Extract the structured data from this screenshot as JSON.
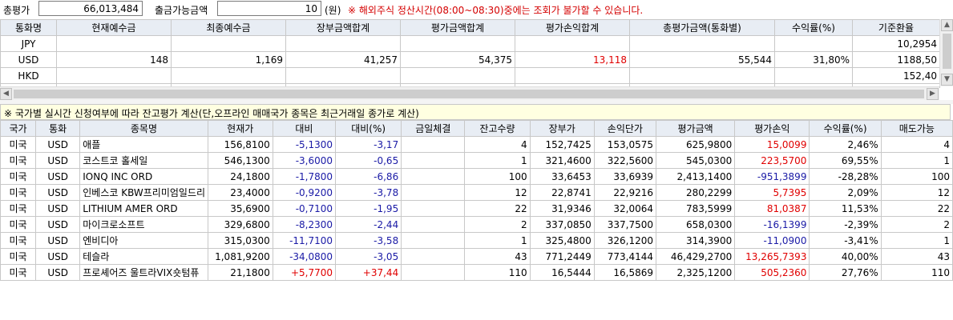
{
  "top": {
    "total_label": "총평가",
    "total_value": "66,013,484",
    "withdraw_label": "출금가능금액",
    "withdraw_value": "10",
    "unit": "(원)",
    "warning": "※ 해외주식 정산시간(08:00~08:30)중에는 조회가 불가할 수 있습니다."
  },
  "currency_table": {
    "headers": [
      "통화명",
      "현재예수금",
      "최종예수금",
      "장부금액합계",
      "평가금액합계",
      "평가손익합계",
      "총평가금액(통화별)",
      "수익률(%)",
      "기준환율"
    ],
    "rows": [
      {
        "currency": "JPY",
        "cur_deposit": "",
        "final_deposit": "",
        "book_total": "",
        "eval_total": "",
        "pl_total": "",
        "total_eval": "",
        "return": "",
        "rate": "10,2954"
      },
      {
        "currency": "USD",
        "cur_deposit": "148",
        "final_deposit": "1,169",
        "book_total": "41,257",
        "eval_total": "54,375",
        "pl_total": "13,118",
        "total_eval": "55,544",
        "return": "31,80%",
        "rate": "1188,50"
      },
      {
        "currency": "HKD",
        "cur_deposit": "",
        "final_deposit": "",
        "book_total": "",
        "eval_total": "",
        "pl_total": "",
        "total_eval": "",
        "return": "",
        "rate": "152,40"
      }
    ]
  },
  "notice": "※ 국가별 실시간 신청여부에 따라 잔고평가 계산(단,오프라인 매매국가 종목은 최근거래일 종가로 계산)",
  "holdings": {
    "headers": [
      "국가",
      "통화",
      "종목명",
      "현재가",
      "대비",
      "대비(%)",
      "금일체결",
      "잔고수량",
      "장부가",
      "손익단가",
      "평가금액",
      "평가손익",
      "수익률(%)",
      "매도가능"
    ],
    "rows": [
      {
        "country": "미국",
        "currency": "USD",
        "name": "애플",
        "price": "156,8100",
        "change": "-5,1300",
        "change_pct": "-3,17",
        "today_exec": "",
        "qty": "4",
        "book_price": "152,7425",
        "pl_unit": "153,0575",
        "eval_amt": "625,9800",
        "eval_pl": "15,0099",
        "ret": "2,46%",
        "sellable": "4",
        "dir": "down",
        "pl_dir": "up"
      },
      {
        "country": "미국",
        "currency": "USD",
        "name": "코스트코 홀세일",
        "price": "546,1300",
        "change": "-3,6000",
        "change_pct": "-0,65",
        "today_exec": "",
        "qty": "1",
        "book_price": "321,4600",
        "pl_unit": "322,5600",
        "eval_amt": "545,0300",
        "eval_pl": "223,5700",
        "ret": "69,55%",
        "sellable": "1",
        "dir": "down",
        "pl_dir": "up"
      },
      {
        "country": "미국",
        "currency": "USD",
        "name": "IONQ INC ORD",
        "price": "24,1800",
        "change": "-1,7800",
        "change_pct": "-6,86",
        "today_exec": "",
        "qty": "100",
        "book_price": "33,6453",
        "pl_unit": "33,6939",
        "eval_amt": "2,413,1400",
        "eval_pl": "-951,3899",
        "ret": "-28,28%",
        "sellable": "100",
        "dir": "down",
        "pl_dir": "down"
      },
      {
        "country": "미국",
        "currency": "USD",
        "name": "인베스코 KBW프리미엄일드리",
        "price": "23,4000",
        "change": "-0,9200",
        "change_pct": "-3,78",
        "today_exec": "",
        "qty": "12",
        "book_price": "22,8741",
        "pl_unit": "22,9216",
        "eval_amt": "280,2299",
        "eval_pl": "5,7395",
        "ret": "2,09%",
        "sellable": "12",
        "dir": "down",
        "pl_dir": "up"
      },
      {
        "country": "미국",
        "currency": "USD",
        "name": "LITHIUM AMER ORD",
        "price": "35,6900",
        "change": "-0,7100",
        "change_pct": "-1,95",
        "today_exec": "",
        "qty": "22",
        "book_price": "31,9346",
        "pl_unit": "32,0064",
        "eval_amt": "783,5999",
        "eval_pl": "81,0387",
        "ret": "11,53%",
        "sellable": "22",
        "dir": "down",
        "pl_dir": "up"
      },
      {
        "country": "미국",
        "currency": "USD",
        "name": "마이크로소프트",
        "price": "329,6800",
        "change": "-8,2300",
        "change_pct": "-2,44",
        "today_exec": "",
        "qty": "2",
        "book_price": "337,0850",
        "pl_unit": "337,7500",
        "eval_amt": "658,0300",
        "eval_pl": "-16,1399",
        "ret": "-2,39%",
        "sellable": "2",
        "dir": "down",
        "pl_dir": "down"
      },
      {
        "country": "미국",
        "currency": "USD",
        "name": "엔비디아",
        "price": "315,0300",
        "change": "-11,7100",
        "change_pct": "-3,58",
        "today_exec": "",
        "qty": "1",
        "book_price": "325,4800",
        "pl_unit": "326,1200",
        "eval_amt": "314,3900",
        "eval_pl": "-11,0900",
        "ret": "-3,41%",
        "sellable": "1",
        "dir": "down",
        "pl_dir": "down"
      },
      {
        "country": "미국",
        "currency": "USD",
        "name": "테슬라",
        "price": "1,081,9200",
        "change": "-34,0800",
        "change_pct": "-3,05",
        "today_exec": "",
        "qty": "43",
        "book_price": "771,2449",
        "pl_unit": "773,4144",
        "eval_amt": "46,429,2700",
        "eval_pl": "13,265,7393",
        "ret": "40,00%",
        "sellable": "43",
        "dir": "down",
        "pl_dir": "up"
      },
      {
        "country": "미국",
        "currency": "USD",
        "name": "프로셰어즈 울트라VIX숏텀퓨",
        "price": "21,1800",
        "change": "+5,7700",
        "change_pct": "+37,44",
        "today_exec": "",
        "qty": "110",
        "book_price": "16,5444",
        "pl_unit": "16,5869",
        "eval_amt": "2,325,1200",
        "eval_pl": "505,2360",
        "ret": "27,76%",
        "sellable": "110",
        "dir": "up",
        "pl_dir": "up"
      }
    ]
  },
  "colors": {
    "up": "#e00000",
    "down": "#1a1aa6",
    "header_bg": "#e8edf4",
    "notice_bg": "#ffffe1"
  }
}
